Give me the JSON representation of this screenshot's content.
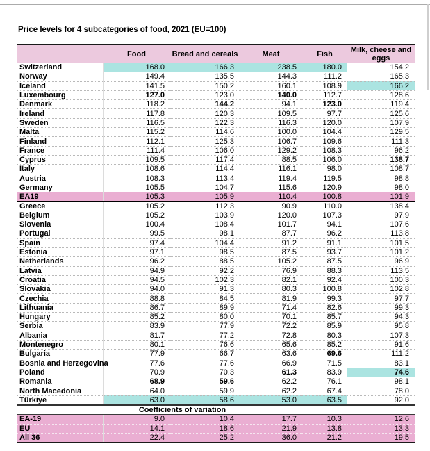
{
  "title": "Price levels for 4 subcategories of food, 2021 (EU=100)",
  "colors": {
    "header_pink": "#ecc9de",
    "aggregate_pink": "#eaaed2",
    "highlight_cyan": "#abe4e1"
  },
  "chart_data": {
    "type": "table",
    "title": "Price levels for 4 subcategories of food, 2021 (EU=100)",
    "columns": [
      "Food",
      "Bread and cereals",
      "Meat",
      "Fish",
      "Milk, cheese and eggs"
    ],
    "rows": [
      {
        "label": "Switzerland",
        "values": [
          "168.0",
          "166.3",
          "238.5",
          "180.0",
          "154.2"
        ],
        "cyan": [
          0,
          1,
          2,
          3
        ]
      },
      {
        "label": "Norway",
        "values": [
          "149.4",
          "135.5",
          "144.3",
          "111.2",
          "165.3"
        ]
      },
      {
        "label": "Iceland",
        "values": [
          "141.5",
          "150.2",
          "160.1",
          "108.9",
          "166.2"
        ],
        "cyan": [
          4
        ]
      },
      {
        "label": "Luxembourg",
        "values": [
          "127.0",
          "123.0",
          "140.0",
          "112.7",
          "128.6"
        ],
        "bold": [
          0,
          2
        ]
      },
      {
        "label": "Denmark",
        "values": [
          "118.2",
          "144.2",
          "94.1",
          "123.0",
          "119.4"
        ],
        "bold": [
          1,
          3
        ]
      },
      {
        "label": "Ireland",
        "values": [
          "117.8",
          "120.3",
          "109.5",
          "97.7",
          "125.6"
        ]
      },
      {
        "label": "Sweden",
        "values": [
          "116.5",
          "122.3",
          "116.3",
          "120.0",
          "107.9"
        ]
      },
      {
        "label": "Malta",
        "values": [
          "115.2",
          "114.6",
          "100.0",
          "104.4",
          "129.5"
        ]
      },
      {
        "label": "Finland",
        "values": [
          "112.1",
          "125.3",
          "106.7",
          "109.6",
          "111.3"
        ]
      },
      {
        "label": "France",
        "values": [
          "111.4",
          "106.0",
          "129.2",
          "108.3",
          "96.2"
        ]
      },
      {
        "label": "Cyprus",
        "values": [
          "109.5",
          "117.4",
          "88.5",
          "106.0",
          "138.7"
        ],
        "bold": [
          4
        ]
      },
      {
        "label": "Italy",
        "values": [
          "108.6",
          "114.4",
          "116.1",
          "98.0",
          "108.7"
        ]
      },
      {
        "label": "Austria",
        "values": [
          "108.3",
          "113.4",
          "119.4",
          "119.5",
          "98.8"
        ]
      },
      {
        "label": "Germany",
        "values": [
          "105.5",
          "104.7",
          "115.6",
          "120.9",
          "98.0"
        ]
      },
      {
        "label": "EA19",
        "values": [
          "105.3",
          "105.9",
          "110.4",
          "100.8",
          "101.9"
        ],
        "aggregate": true
      },
      {
        "label": "Greece",
        "values": [
          "105.2",
          "112.3",
          "90.9",
          "110.0",
          "138.4"
        ]
      },
      {
        "label": "Belgium",
        "values": [
          "105.2",
          "103.9",
          "120.0",
          "107.3",
          "97.9"
        ]
      },
      {
        "label": "Slovenia",
        "values": [
          "100.4",
          "108.4",
          "101.7",
          "94.1",
          "107.6"
        ]
      },
      {
        "label": "Portugal",
        "values": [
          "99.5",
          "98.1",
          "87.7",
          "96.2",
          "113.8"
        ]
      },
      {
        "label": "Spain",
        "values": [
          "97.4",
          "104.4",
          "91.2",
          "91.1",
          "101.5"
        ]
      },
      {
        "label": "Estonia",
        "values": [
          "97.1",
          "98.5",
          "87.5",
          "93.7",
          "101.2"
        ]
      },
      {
        "label": "Netherlands",
        "values": [
          "96.2",
          "88.5",
          "105.2",
          "87.5",
          "96.9"
        ]
      },
      {
        "label": "Latvia",
        "values": [
          "94.9",
          "92.2",
          "76.9",
          "88.3",
          "113.5"
        ]
      },
      {
        "label": "Croatia",
        "values": [
          "94.5",
          "102.3",
          "82.1",
          "92.4",
          "100.3"
        ]
      },
      {
        "label": "Slovakia",
        "values": [
          "94.0",
          "91.3",
          "80.3",
          "100.8",
          "102.8"
        ]
      },
      {
        "label": "Czechia",
        "values": [
          "88.8",
          "84.5",
          "81.9",
          "99.3",
          "97.7"
        ]
      },
      {
        "label": "Lithuania",
        "values": [
          "86.7",
          "89.9",
          "71.4",
          "82.6",
          "99.3"
        ]
      },
      {
        "label": "Hungary",
        "values": [
          "85.2",
          "80.0",
          "70.1",
          "85.7",
          "94.3"
        ]
      },
      {
        "label": "Serbia",
        "values": [
          "83.9",
          "77.9",
          "72.2",
          "85.9",
          "95.8"
        ]
      },
      {
        "label": "Albania",
        "values": [
          "81.7",
          "77.2",
          "72.8",
          "80.3",
          "107.3"
        ]
      },
      {
        "label": "Montenegro",
        "values": [
          "80.1",
          "76.6",
          "65.6",
          "85.2",
          "91.6"
        ]
      },
      {
        "label": "Bulgaria",
        "values": [
          "77.9",
          "66.7",
          "63.6",
          "69.6",
          "111.2"
        ],
        "bold": [
          3
        ]
      },
      {
        "label": "Bosnia and Herzegovina",
        "values": [
          "77.6",
          "77.6",
          "66.9",
          "71.5",
          "83.1"
        ]
      },
      {
        "label": "Poland",
        "values": [
          "70.9",
          "70.3",
          "61.3",
          "83.9",
          "74.6"
        ],
        "bold": [
          2,
          4
        ],
        "cyan": [
          4
        ]
      },
      {
        "label": "Romania",
        "values": [
          "68.9",
          "59.6",
          "62.2",
          "76.1",
          "98.1"
        ],
        "bold": [
          0,
          1
        ]
      },
      {
        "label": "North Macedonia",
        "values": [
          "64.0",
          "59.9",
          "62.2",
          "67.4",
          "78.0"
        ]
      },
      {
        "label": "Türkiye",
        "values": [
          "63.0",
          "58.6",
          "53.0",
          "63.5",
          "92.0"
        ],
        "cyan": [
          0,
          1,
          2,
          3
        ]
      }
    ],
    "coefficients_of_variation": {
      "section_title": "Coefficients of variation",
      "rows": [
        {
          "label": "EA-19",
          "values": [
            "9.0",
            "10.4",
            "17.7",
            "10.3",
            "12.6"
          ]
        },
        {
          "label": "EU",
          "values": [
            "14.1",
            "18.6",
            "21.9",
            "13.8",
            "13.3"
          ]
        },
        {
          "label": "All 36",
          "values": [
            "22.4",
            "25.2",
            "36.0",
            "21.2",
            "19.5"
          ]
        }
      ]
    }
  }
}
